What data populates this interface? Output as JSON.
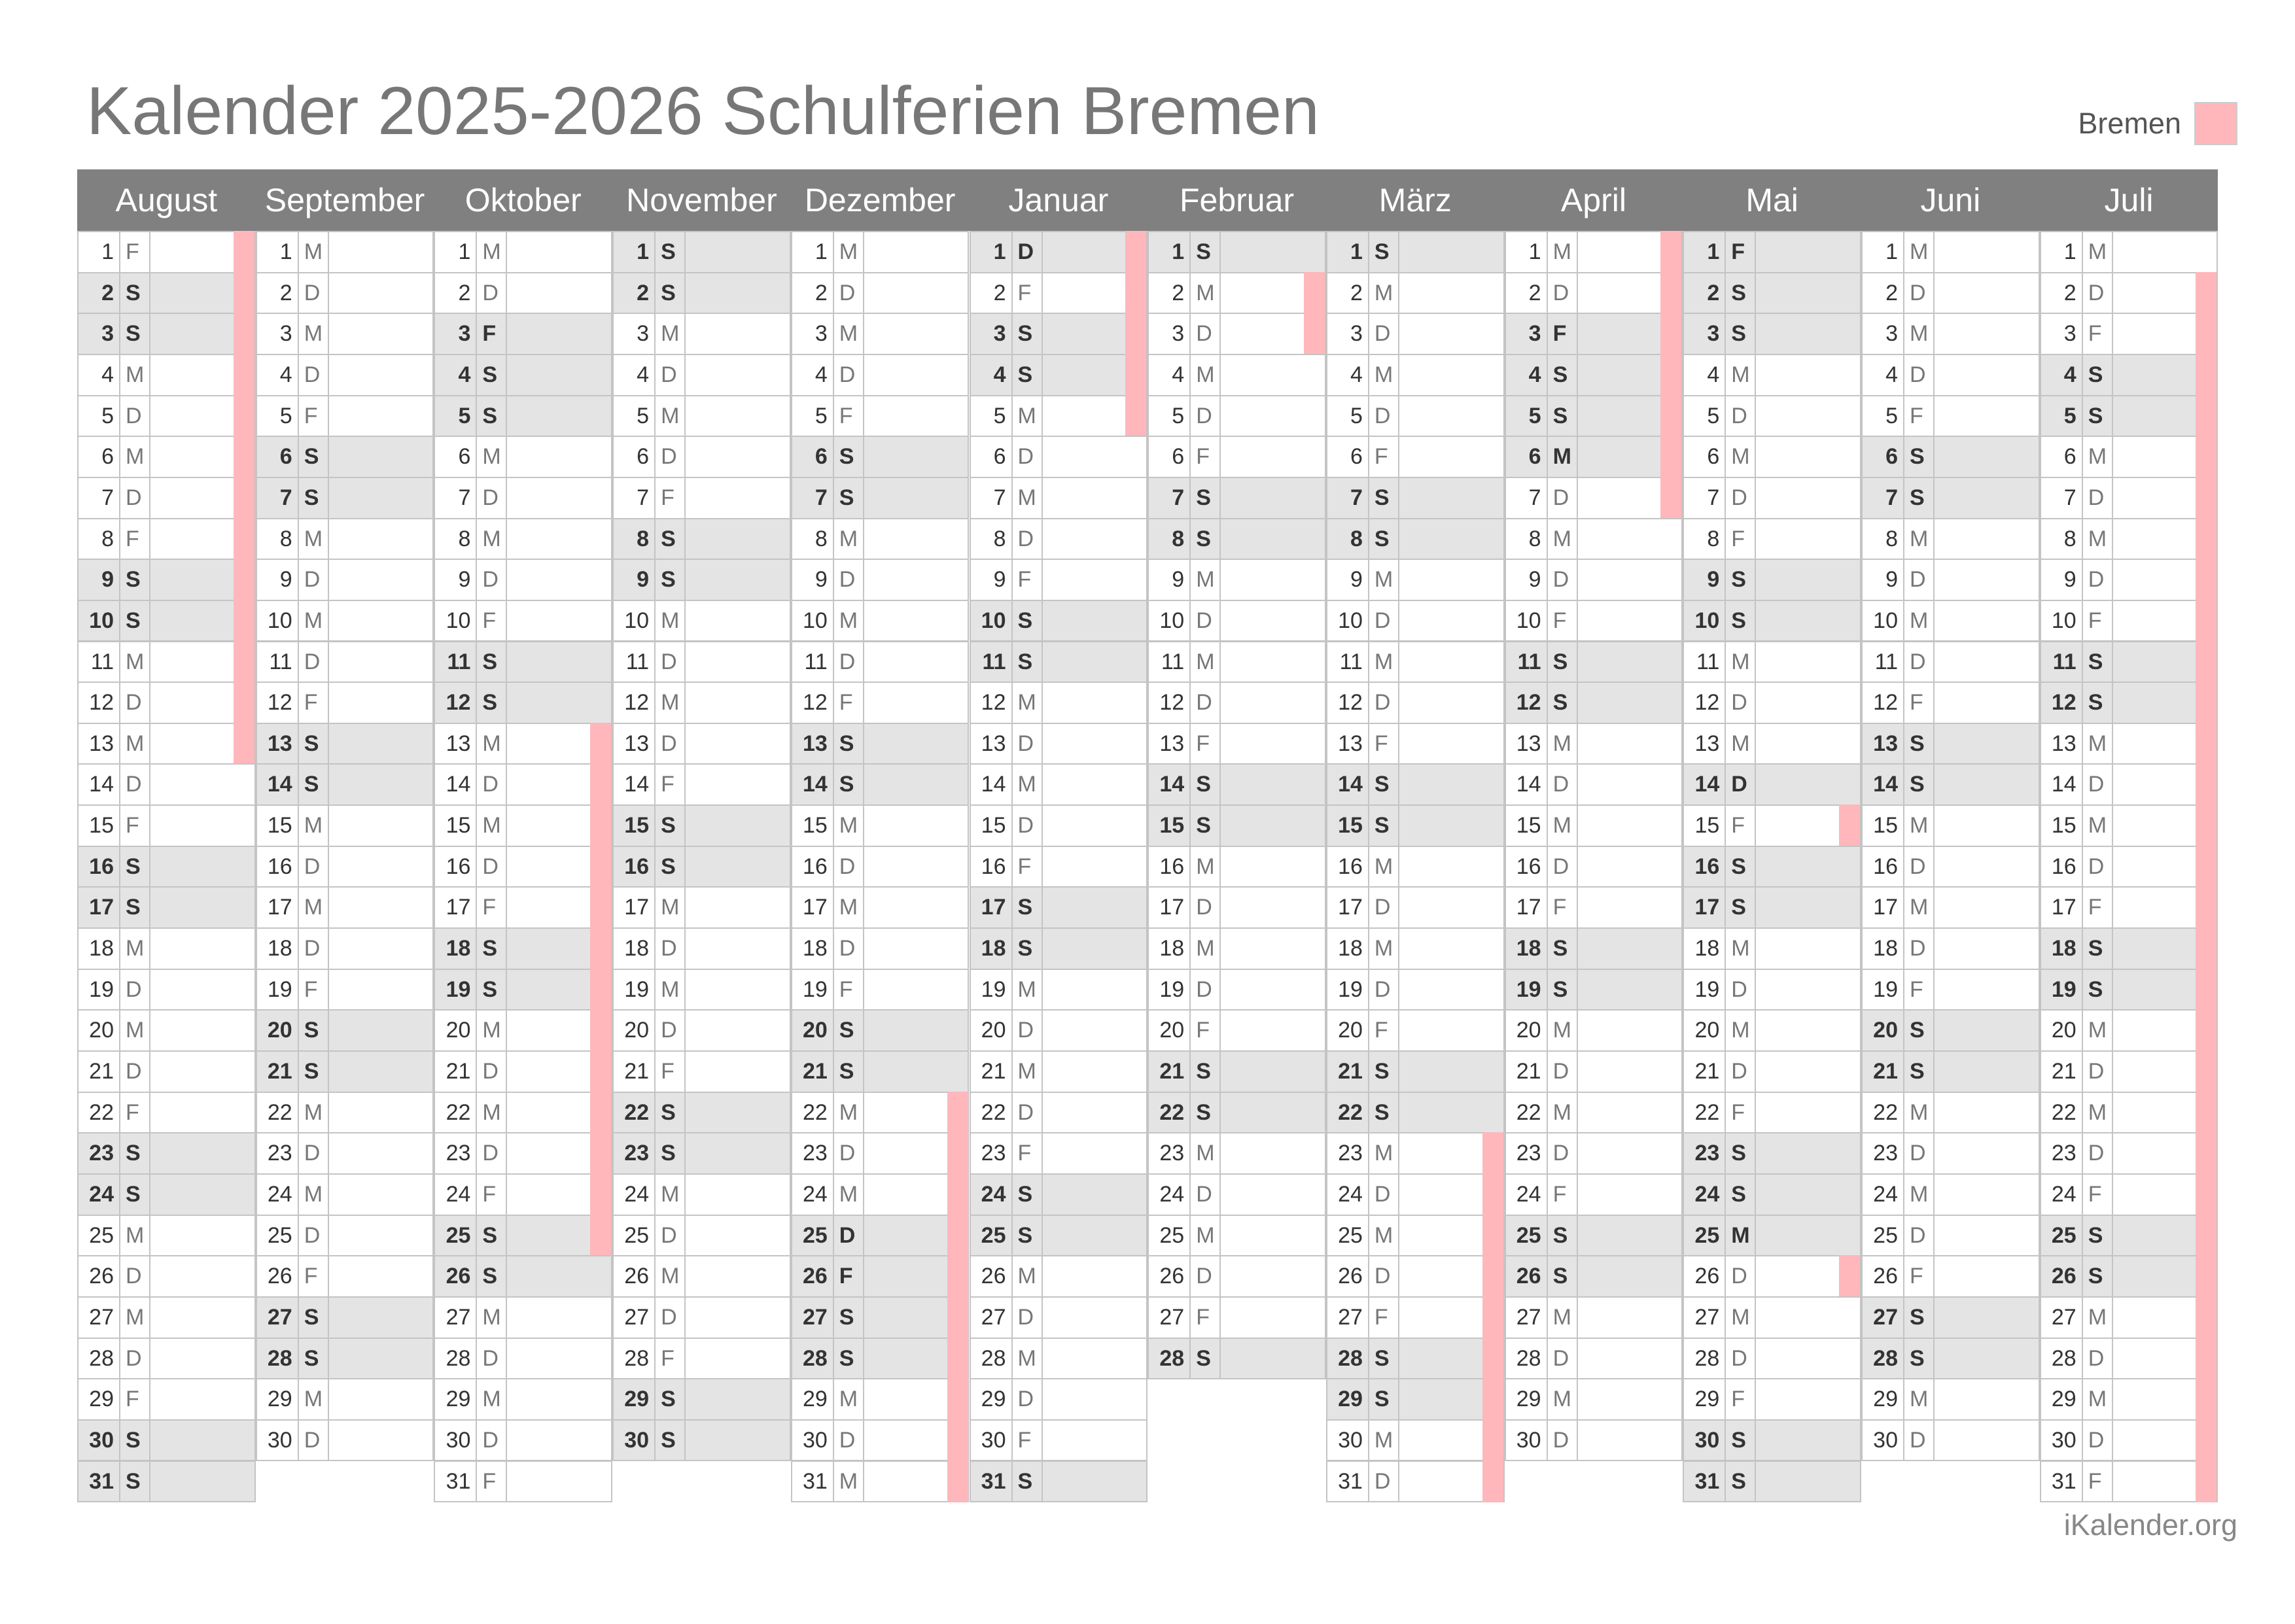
{
  "title": "Kalender 2025-2026 Schulferien Bremen",
  "legend": {
    "label": "Bremen",
    "color": "#ffb7bb"
  },
  "footer": "iKalender.org",
  "weekday_letters": [
    "M",
    "D",
    "M",
    "D",
    "F",
    "S",
    "S"
  ],
  "months": [
    {
      "name": "August",
      "year": 2025,
      "month": 8,
      "days": 31
    },
    {
      "name": "September",
      "year": 2025,
      "month": 9,
      "days": 30
    },
    {
      "name": "Oktober",
      "year": 2025,
      "month": 10,
      "days": 31
    },
    {
      "name": "November",
      "year": 2025,
      "month": 11,
      "days": 30
    },
    {
      "name": "Dezember",
      "year": 2025,
      "month": 12,
      "days": 31
    },
    {
      "name": "Januar",
      "year": 2026,
      "month": 1,
      "days": 31
    },
    {
      "name": "Februar",
      "year": 2026,
      "month": 2,
      "days": 28
    },
    {
      "name": "März",
      "year": 2026,
      "month": 3,
      "days": 31
    },
    {
      "name": "April",
      "year": 2026,
      "month": 4,
      "days": 30
    },
    {
      "name": "Mai",
      "year": 2026,
      "month": 5,
      "days": 31
    },
    {
      "name": "Juni",
      "year": 2026,
      "month": 6,
      "days": 30
    },
    {
      "name": "Juli",
      "year": 2026,
      "month": 7,
      "days": 31
    }
  ],
  "school_holidays": [
    {
      "month_index": 0,
      "from": 1,
      "to": 13
    },
    {
      "month_index": 2,
      "from": 13,
      "to": 25
    },
    {
      "month_index": 4,
      "from": 22,
      "to": 31
    },
    {
      "month_index": 5,
      "from": 1,
      "to": 5
    },
    {
      "month_index": 6,
      "from": 2,
      "to": 3
    },
    {
      "month_index": 7,
      "from": 23,
      "to": 31
    },
    {
      "month_index": 8,
      "from": 1,
      "to": 7
    },
    {
      "month_index": 9,
      "from": 15,
      "to": 15
    },
    {
      "month_index": 9,
      "from": 26,
      "to": 26
    },
    {
      "month_index": 11,
      "from": 2,
      "to": 31
    }
  ],
  "public_holidays": [
    {
      "month_index": 2,
      "day": 3
    },
    {
      "month_index": 4,
      "day": 25
    },
    {
      "month_index": 4,
      "day": 26
    },
    {
      "month_index": 5,
      "day": 1
    },
    {
      "month_index": 8,
      "day": 3
    },
    {
      "month_index": 8,
      "day": 6
    },
    {
      "month_index": 9,
      "day": 1
    },
    {
      "month_index": 9,
      "day": 14
    },
    {
      "month_index": 9,
      "day": 25
    }
  ]
}
